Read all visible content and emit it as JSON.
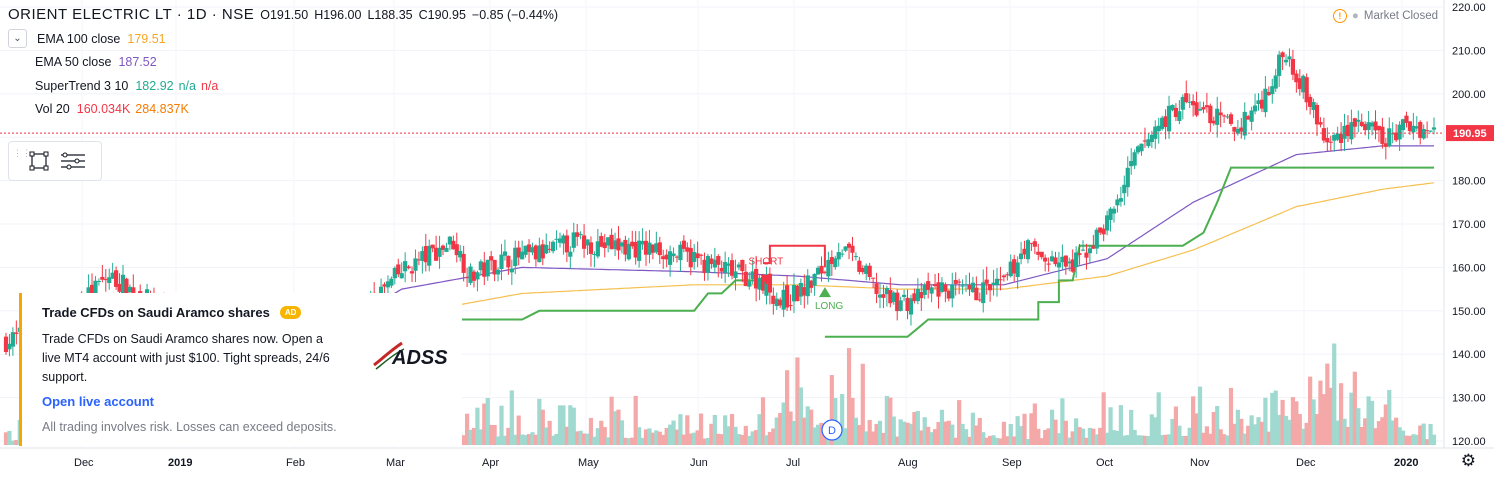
{
  "header": {
    "symbol": "ORIENT ELECTRIC LT · 1D · NSE",
    "open": "O191.50",
    "high": "H196.00",
    "low": "L188.35",
    "close": "C190.95",
    "change": "−0.85 (−0.44%)"
  },
  "indicators": [
    {
      "name": "EMA 100 close",
      "v1": "179.51",
      "c1": "#f5a623"
    },
    {
      "name": "EMA 50 close",
      "v1": "187.52",
      "c1": "#7e57c2"
    },
    {
      "name": "SuperTrend 3 10",
      "v1": "182.92",
      "c1": "#22ab94",
      "v2": "n/a",
      "c2": "#22ab94",
      "v3": "n/a",
      "c3": "#f23645"
    },
    {
      "name": "Vol 20",
      "v1": "160.034K",
      "c1": "#f23645",
      "v2": "284.837K",
      "c2": "#f57c00"
    }
  ],
  "market_status": "Market Closed",
  "ad": {
    "title": "Trade CFDs on Saudi Aramco shares",
    "badge": "AD",
    "body": "Trade CFDs on Saudi Aramco shares now. Open a live MT4 account with just $100. Tight spreads, 24/6 support.",
    "link": "Open live account",
    "disclaimer": "All trading involves risk. Losses can exceed deposits.",
    "logo": "ADSS"
  },
  "colors": {
    "up": "#22ab94",
    "down": "#f23645",
    "ema100": "#f5c050",
    "ema50": "#7e57c2",
    "supertrend": "#4caf50",
    "supertrend_down": "#f23645",
    "vol_up": "#9fd9cf",
    "vol_down": "#f5a8a8",
    "price_line": "#f23645"
  },
  "chart_data": {
    "type": "candlestick",
    "ylim": [
      120,
      220
    ],
    "y_ticks": [
      120,
      130,
      140,
      150,
      160,
      170,
      180,
      190,
      200,
      210,
      220
    ],
    "x_ticks": [
      "Dec",
      "2019",
      "Feb",
      "Mar",
      "Apr",
      "May",
      "Jun",
      "Jul",
      "Aug",
      "Sep",
      "Oct",
      "Nov",
      "Dec",
      "2020"
    ],
    "last_price": 190.95,
    "last_price_label": "190.95",
    "price_anchors": [
      [
        0,
        143
      ],
      [
        12,
        146
      ],
      [
        22,
        152
      ],
      [
        30,
        158
      ],
      [
        38,
        154
      ],
      [
        48,
        149
      ],
      [
        60,
        146
      ],
      [
        70,
        140
      ],
      [
        80,
        130
      ],
      [
        96,
        142
      ],
      [
        105,
        151
      ],
      [
        115,
        159
      ],
      [
        123,
        163
      ],
      [
        130,
        166
      ],
      [
        135,
        158
      ],
      [
        145,
        162
      ],
      [
        155,
        163
      ],
      [
        165,
        166
      ],
      [
        175,
        165
      ],
      [
        190,
        164
      ],
      [
        200,
        162
      ],
      [
        210,
        159
      ],
      [
        220,
        157
      ],
      [
        225,
        152
      ],
      [
        232,
        155
      ],
      [
        238,
        160
      ],
      [
        242,
        165
      ],
      [
        248,
        160
      ],
      [
        255,
        153
      ],
      [
        262,
        152
      ],
      [
        270,
        155
      ],
      [
        280,
        154
      ],
      [
        290,
        156
      ],
      [
        296,
        165
      ],
      [
        302,
        162
      ],
      [
        310,
        160
      ],
      [
        318,
        168
      ],
      [
        323,
        175
      ],
      [
        328,
        185
      ],
      [
        335,
        193
      ],
      [
        342,
        198
      ],
      [
        350,
        195
      ],
      [
        358,
        192
      ],
      [
        366,
        200
      ],
      [
        372,
        210
      ],
      [
        378,
        200
      ],
      [
        384,
        188
      ],
      [
        392,
        194
      ],
      [
        400,
        189
      ],
      [
        408,
        193
      ],
      [
        415,
        191
      ]
    ],
    "ema50_anchors": [
      [
        90,
        143
      ],
      [
        115,
        155
      ],
      [
        150,
        160
      ],
      [
        200,
        159
      ],
      [
        230,
        158
      ],
      [
        260,
        156
      ],
      [
        290,
        156
      ],
      [
        320,
        162
      ],
      [
        345,
        175
      ],
      [
        375,
        186
      ],
      [
        400,
        188
      ],
      [
        415,
        188
      ]
    ],
    "ema100_anchors": [
      [
        90,
        142
      ],
      [
        115,
        149
      ],
      [
        150,
        154
      ],
      [
        200,
        156
      ],
      [
        230,
        156
      ],
      [
        260,
        155
      ],
      [
        290,
        155
      ],
      [
        320,
        158
      ],
      [
        345,
        164
      ],
      [
        375,
        174
      ],
      [
        400,
        178
      ],
      [
        415,
        179.5
      ]
    ],
    "supertrend_segments": [
      {
        "dir": "up",
        "points": [
          [
            90,
            133
          ],
          [
            95,
            133
          ],
          [
            95,
            136
          ],
          [
            98,
            136
          ],
          [
            98,
            140
          ],
          [
            103,
            140
          ],
          [
            103,
            145
          ],
          [
            107,
            145
          ],
          [
            107,
            148
          ],
          [
            150,
            148
          ],
          [
            155,
            150
          ],
          [
            200,
            150
          ],
          [
            204,
            154
          ],
          [
            208,
            154
          ],
          [
            212,
            157
          ],
          [
            215,
            157
          ],
          [
            220,
            157
          ]
        ]
      },
      {
        "dir": "down",
        "points": [
          [
            220,
            161
          ],
          [
            222,
            161
          ],
          [
            222,
            165
          ],
          [
            238,
            165
          ],
          [
            238,
            160
          ]
        ]
      },
      {
        "dir": "up",
        "points": [
          [
            238,
            144
          ],
          [
            262,
            144
          ],
          [
            265,
            146
          ],
          [
            268,
            148
          ],
          [
            300,
            148
          ],
          [
            300,
            152
          ],
          [
            306,
            152
          ],
          [
            306,
            157
          ],
          [
            310,
            157
          ],
          [
            312,
            165
          ],
          [
            342,
            165
          ],
          [
            348,
            168
          ],
          [
            352,
            175
          ],
          [
            356,
            183
          ],
          [
            415,
            183
          ]
        ]
      }
    ],
    "annotations": [
      {
        "label": "SHORT",
        "x": 221,
        "y": 162,
        "dir": "down"
      },
      {
        "label": "LONG",
        "x": 238,
        "y": 155,
        "dir": "up"
      }
    ],
    "volume_anchors": [
      [
        0,
        0.2
      ],
      [
        30,
        0.3
      ],
      [
        80,
        0.25
      ],
      [
        100,
        0.3
      ],
      [
        115,
        0.45
      ],
      [
        140,
        0.5
      ],
      [
        155,
        0.55
      ],
      [
        175,
        0.4
      ],
      [
        200,
        0.35
      ],
      [
        222,
        0.6
      ],
      [
        238,
        0.9
      ],
      [
        260,
        0.45
      ],
      [
        300,
        0.35
      ],
      [
        330,
        0.5
      ],
      [
        360,
        0.55
      ],
      [
        376,
        0.95
      ],
      [
        392,
        0.7
      ],
      [
        415,
        0.25
      ]
    ]
  }
}
